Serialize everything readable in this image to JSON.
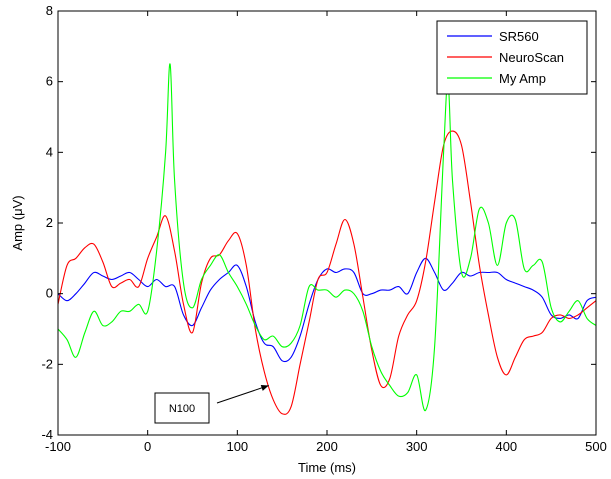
{
  "chart_data": {
    "type": "line",
    "title": "",
    "xlabel": "Time (ms)",
    "ylabel": "Amp (μV)",
    "xlim": [
      -100,
      500
    ],
    "ylim": [
      -4,
      8
    ],
    "xticks": [
      -100,
      0,
      100,
      200,
      300,
      400,
      500
    ],
    "yticks": [
      -4,
      -2,
      0,
      2,
      4,
      6,
      8
    ],
    "xtick_labels": [
      "-100",
      "0",
      "100",
      "200",
      "300",
      "400",
      "500"
    ],
    "ytick_labels": [
      "-4",
      "-2",
      "0",
      "2",
      "4",
      "6",
      "8"
    ],
    "grid": false,
    "legend_position": "top-right",
    "series": [
      {
        "name": "SR560",
        "color": "#0000ff",
        "x": [
          -100,
          -90,
          -80,
          -70,
          -60,
          -50,
          -40,
          -30,
          -20,
          -10,
          0,
          10,
          20,
          30,
          40,
          50,
          60,
          70,
          80,
          90,
          100,
          110,
          120,
          130,
          140,
          150,
          160,
          170,
          180,
          190,
          200,
          210,
          220,
          230,
          240,
          250,
          260,
          270,
          280,
          290,
          300,
          310,
          320,
          330,
          340,
          350,
          360,
          370,
          380,
          390,
          400,
          410,
          420,
          430,
          440,
          450,
          460,
          470,
          480,
          490,
          500
        ],
        "y": [
          0,
          -0.2,
          0,
          0.3,
          0.6,
          0.5,
          0.4,
          0.5,
          0.6,
          0.4,
          0.2,
          0.4,
          0.2,
          0.2,
          -0.6,
          -0.9,
          -0.4,
          0.1,
          0.4,
          0.6,
          0.8,
          0.2,
          -0.8,
          -1.4,
          -1.5,
          -1.9,
          -1.8,
          -1.2,
          -0.3,
          0.4,
          0.7,
          0.6,
          0.7,
          0.6,
          0.0,
          0.0,
          0.1,
          0.1,
          0.2,
          0.0,
          0.6,
          1.0,
          0.6,
          0.1,
          0.3,
          0.6,
          0.5,
          0.6,
          0.6,
          0.6,
          0.4,
          0.3,
          0.2,
          0.1,
          -0.1,
          -0.6,
          -0.7,
          -0.6,
          -0.7,
          -0.2,
          -0.1
        ]
      },
      {
        "name": "NeuroScan",
        "color": "#ff0000",
        "x": [
          -100,
          -90,
          -80,
          -70,
          -60,
          -50,
          -40,
          -30,
          -20,
          -10,
          0,
          10,
          20,
          30,
          40,
          50,
          60,
          70,
          80,
          90,
          100,
          110,
          120,
          130,
          140,
          150,
          160,
          170,
          180,
          190,
          200,
          210,
          220,
          230,
          240,
          250,
          260,
          270,
          280,
          290,
          300,
          310,
          320,
          330,
          340,
          350,
          360,
          370,
          380,
          390,
          400,
          410,
          420,
          430,
          440,
          450,
          460,
          470,
          480,
          490,
          500
        ],
        "y": [
          -0.3,
          0.8,
          1.0,
          1.3,
          1.4,
          0.9,
          0.2,
          0.3,
          0.4,
          0.2,
          1.0,
          1.6,
          2.2,
          1.2,
          -0.3,
          -1.1,
          0.3,
          1.0,
          1.1,
          1.5,
          1.7,
          0.8,
          -1.0,
          -2.2,
          -3.0,
          -3.4,
          -3.2,
          -2.0,
          -0.8,
          0.4,
          0.6,
          1.4,
          2.1,
          1.4,
          -0.1,
          -1.6,
          -2.6,
          -2.4,
          -1.2,
          -0.6,
          -0.2,
          0.9,
          2.6,
          4.2,
          4.6,
          4.2,
          2.6,
          0.8,
          -0.6,
          -1.8,
          -2.3,
          -1.8,
          -1.3,
          -1.2,
          -1.1,
          -0.7,
          -0.6,
          -0.7,
          -0.6,
          -0.4,
          -0.2
        ]
      },
      {
        "name": "My Amp",
        "color": "#00ff00",
        "x": [
          -100,
          -90,
          -80,
          -70,
          -60,
          -50,
          -40,
          -30,
          -20,
          -10,
          0,
          10,
          20,
          25,
          30,
          40,
          50,
          60,
          70,
          80,
          90,
          100,
          110,
          120,
          130,
          140,
          150,
          160,
          170,
          180,
          190,
          200,
          210,
          220,
          230,
          240,
          250,
          260,
          270,
          280,
          290,
          300,
          310,
          320,
          330,
          335,
          340,
          350,
          360,
          370,
          380,
          390,
          400,
          410,
          420,
          430,
          440,
          450,
          460,
          470,
          480,
          490,
          500
        ],
        "y": [
          -1.0,
          -1.3,
          -1.8,
          -1.1,
          -0.5,
          -0.9,
          -0.8,
          -0.5,
          -0.5,
          -0.3,
          -0.5,
          1.2,
          4.0,
          6.5,
          3.2,
          0.3,
          -0.4,
          0.4,
          0.8,
          1.1,
          0.6,
          0.2,
          -0.3,
          -0.9,
          -1.3,
          -1.2,
          -1.5,
          -1.4,
          -0.9,
          0.2,
          0.1,
          0.1,
          -0.1,
          0.1,
          0.0,
          -0.5,
          -1.5,
          -2.2,
          -2.6,
          -2.9,
          -2.8,
          -2.3,
          -3.3,
          -1.5,
          4.0,
          6.0,
          3.2,
          0.6,
          1.0,
          2.4,
          2.0,
          0.8,
          2.0,
          2.1,
          0.7,
          0.8,
          0.9,
          -0.4,
          -0.8,
          -0.5,
          -0.2,
          -0.7,
          -0.9
        ]
      }
    ],
    "annotations": [
      {
        "text": "N100",
        "arrow_to": {
          "x": 135,
          "y": -2.6
        }
      }
    ]
  }
}
